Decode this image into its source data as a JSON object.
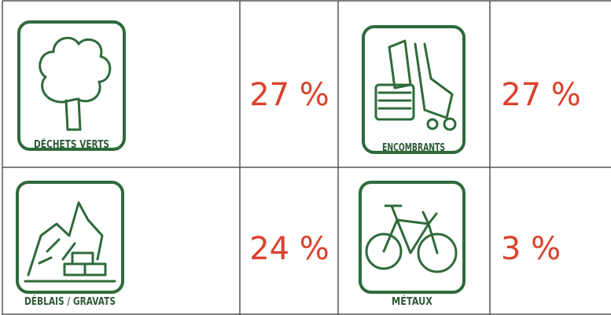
{
  "table": {
    "rows": [
      [
        {
          "label": "DÉCHETS VERTS",
          "value": "27 %"
        },
        {
          "label": "ENCOMBRANTS",
          "value": "27 %"
        }
      ],
      [
        {
          "label": "DÉBLAIS / GRAVATS",
          "value": "24 %"
        },
        {
          "label": "MÉTAUX",
          "value": "3 %"
        }
      ]
    ]
  }
}
